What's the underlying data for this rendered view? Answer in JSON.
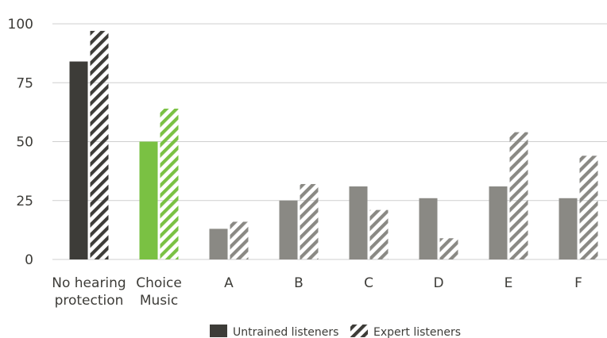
{
  "chart_data": {
    "type": "bar",
    "categories": [
      [
        "No hearing",
        "protection"
      ],
      [
        "Choice",
        "Music"
      ],
      [
        "A"
      ],
      [
        "B"
      ],
      [
        "C"
      ],
      [
        "D"
      ],
      [
        "E"
      ],
      [
        "F"
      ]
    ],
    "series": [
      {
        "name": "Untrained listeners",
        "style": "solid",
        "values": [
          84,
          50,
          13,
          25,
          31,
          26,
          31,
          26
        ]
      },
      {
        "name": "Expert listeners",
        "style": "hatched",
        "values": [
          97,
          64,
          16,
          32,
          21,
          9,
          54,
          44
        ]
      }
    ],
    "category_colors": [
      "#3d3c38",
      "#7ac143",
      "#8a8984",
      "#8a8984",
      "#8a8984",
      "#8a8984",
      "#8a8984",
      "#8a8984"
    ],
    "legend_color": "#3d3c38",
    "grid_color": "#cfcfcf",
    "yticks": [
      0,
      25,
      50,
      75,
      100
    ],
    "ylim": [
      0,
      100
    ],
    "grid": true,
    "legend_position": "bottom-center",
    "title": "",
    "xlabel": "",
    "ylabel": ""
  }
}
